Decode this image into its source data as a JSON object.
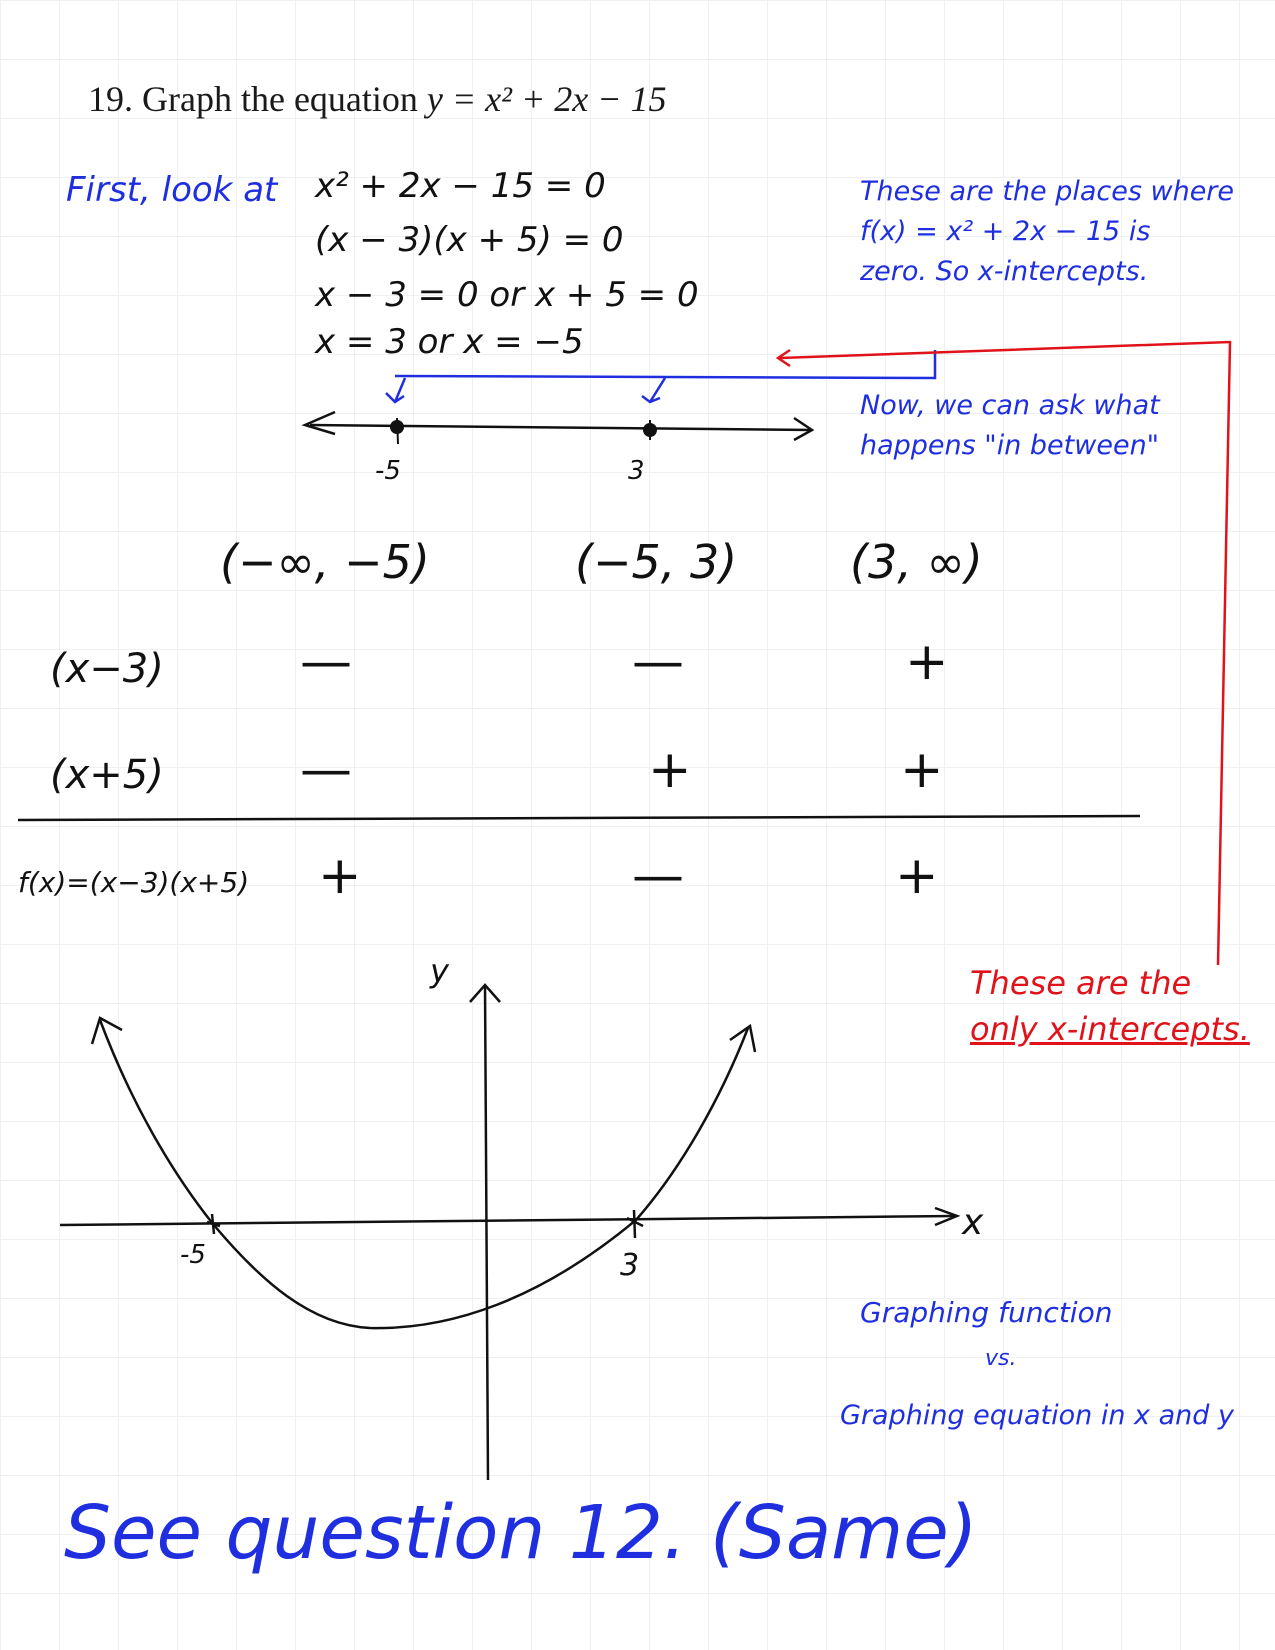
{
  "question": {
    "number": "19.",
    "prompt": "Graph the equation",
    "equation": "y = x² + 2x − 15"
  },
  "work": {
    "intro": "First, look at",
    "lines": [
      "x² + 2x − 15 = 0",
      "(x − 3)(x + 5) = 0",
      "x − 3 = 0  or  x + 5 = 0",
      "x = 3  or  x = −5"
    ]
  },
  "notes": {
    "zeros": [
      "These are the places where",
      "f(x) = x² + 2x − 15 is",
      "zero. So x-intercepts."
    ],
    "between": [
      "Now, we can ask what",
      "happens \"in between\""
    ],
    "only": [
      "These are the",
      "only x-intercepts."
    ],
    "compare": [
      "Graphing function",
      "vs.",
      "Graphing equation in x and y"
    ],
    "see": "See question 12. (Same)"
  },
  "number_line": {
    "left_label": "-5",
    "right_label": "3"
  },
  "sign_table": {
    "intervals": [
      "(−∞, −5)",
      "(−5, 3)",
      "(3, ∞)"
    ],
    "rows": [
      {
        "label": "(x−3)",
        "signs": [
          "—",
          "—",
          "+"
        ]
      },
      {
        "label": "(x+5)",
        "signs": [
          "—",
          "+",
          "+"
        ]
      }
    ],
    "result": {
      "label": "f(x)=(x−3)(x+5)",
      "signs": [
        "+",
        "—",
        "+"
      ]
    }
  },
  "graph": {
    "y_label": "y",
    "x_label": "x",
    "left_intercept_label": "-5",
    "right_intercept_label": "3",
    "x_intercepts": [
      -5,
      3
    ],
    "vertex": [
      -1,
      -16
    ]
  },
  "colors": {
    "ink": "#111111",
    "blue": "#1f2fe0",
    "red": "#e0131b",
    "grid": "#eef1f4"
  }
}
